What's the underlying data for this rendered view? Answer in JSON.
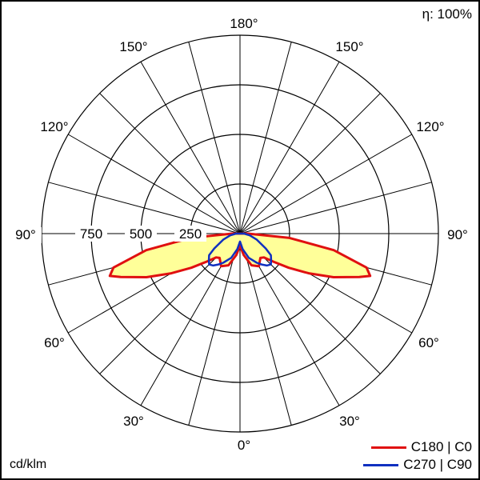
{
  "efficiency": "η: 100%",
  "units": "cd/klm",
  "chart_data": {
    "type": "polar",
    "radial_ticks": [
      250,
      500,
      750
    ],
    "radial_max": 1000,
    "angle_labels": {
      "bottom": "0°",
      "top": "180°",
      "lower_left": "30°",
      "lower_right": "30°",
      "mid_low_left": "60°",
      "mid_low_right": "60°",
      "left": "90°",
      "right": "90°",
      "upper_left": "120°",
      "upper_right": "120°",
      "top_left": "150°",
      "top_right": "150°"
    },
    "series": [
      {
        "name": "C180 | C0",
        "color": "#e01010",
        "fill": "#ffff99",
        "angles": [
          0,
          10,
          20,
          30,
          40,
          45,
          50,
          55,
          60,
          65,
          70,
          72,
          75,
          80,
          85,
          90
        ],
        "values": [
          60,
          110,
          170,
          190,
          160,
          170,
          220,
          300,
          400,
          520,
          640,
          690,
          660,
          480,
          250,
          40
        ]
      },
      {
        "name": "C270 | C90",
        "color": "#1030c0",
        "angles": [
          0,
          10,
          20,
          30,
          35,
          40,
          45,
          50,
          55,
          60,
          70,
          80,
          90
        ],
        "values": [
          40,
          80,
          130,
          170,
          190,
          210,
          220,
          205,
          190,
          150,
          90,
          50,
          20
        ]
      }
    ]
  }
}
